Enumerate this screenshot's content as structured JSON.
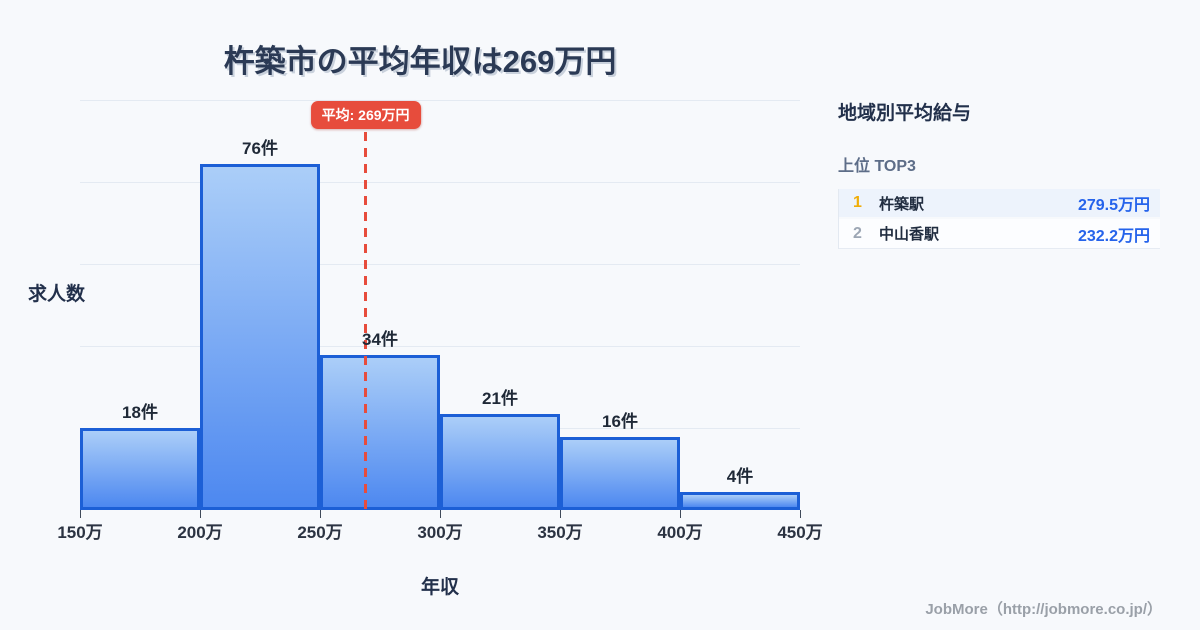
{
  "title": "杵築市の平均年収は269万円",
  "chart_data": {
    "type": "bar",
    "title": "杵築市の平均年収は269万円",
    "xlabel": "年収",
    "ylabel": "求人数",
    "categories": [
      "150万-200万",
      "200万-250万",
      "250万-300万",
      "300万-350万",
      "350万-400万",
      "400万-450万"
    ],
    "values": [
      18,
      76,
      34,
      21,
      16,
      4
    ],
    "bar_labels": [
      "18件",
      "76件",
      "34件",
      "21件",
      "16件",
      "4件"
    ],
    "x_ticks": [
      "150万",
      "200万",
      "250万",
      "300万",
      "350万",
      "400万",
      "450万"
    ],
    "x_range_man": [
      150,
      450
    ],
    "ylim": [
      0,
      90
    ],
    "grid": true,
    "gridline_count": 5,
    "legend": "none",
    "average": {
      "value": 269,
      "label": "平均: 269万円"
    },
    "colors": {
      "bar_fill_top": "#abcef8",
      "bar_fill_bottom": "#4d88f0",
      "bar_border": "#1c5fd6",
      "average_line": "#e74c3c",
      "gridline": "#e4eaf2",
      "background": "#f7f9fc"
    }
  },
  "sidebar": {
    "title": "地域別平均給与",
    "subtitle": "上位 TOP3",
    "rows": [
      {
        "rank": "1",
        "name": "杵築駅",
        "value": "279.5万円"
      },
      {
        "rank": "2",
        "name": "中山香駅",
        "value": "232.2万円"
      }
    ],
    "colors": {
      "rank1": "#f0ad08",
      "rank_other": "#9ca6b4",
      "value": "#2563eb"
    }
  },
  "footer": {
    "credit": "JobMore（http://jobmore.co.jp/）"
  }
}
